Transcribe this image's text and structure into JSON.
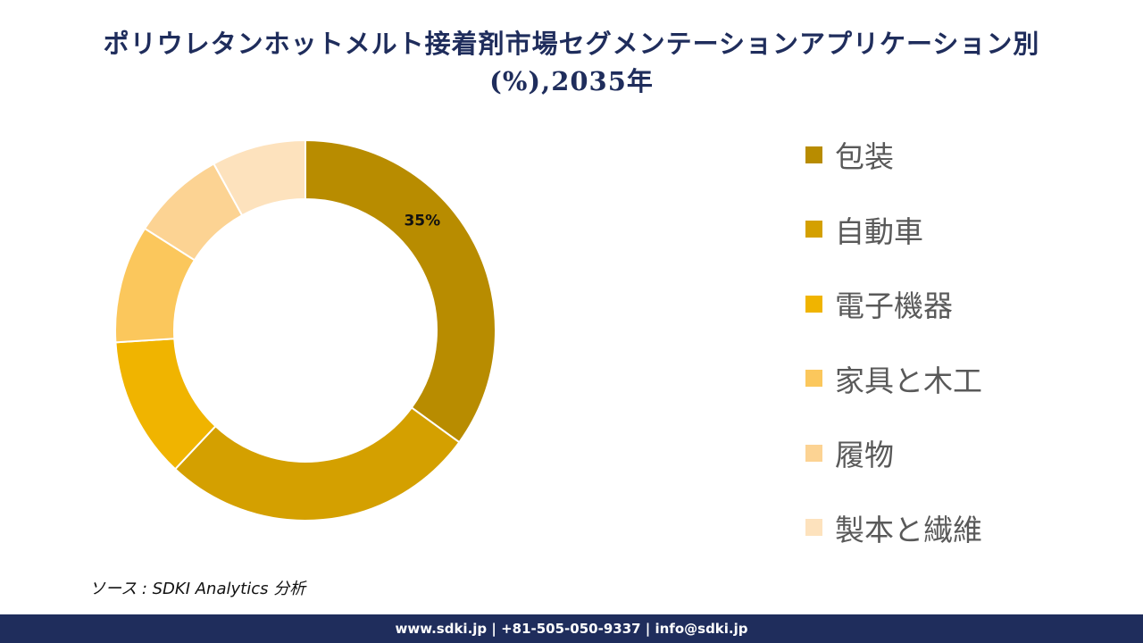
{
  "title": "ポリウレタンホットメルト接着剤市場セグメンテーションアプリケーション別(%),2035年",
  "source": "ソース : SDKI Analytics 分析",
  "footer": "www.sdki.jp | +81-505-050-9337 | info@sdki.jp",
  "colors": {
    "title": "#1f2d5c",
    "footer_bg": "#1f2d5c"
  },
  "chart_data": {
    "type": "pie",
    "style": "donut",
    "legend_position": "right",
    "categories": [
      "包装",
      "自動車",
      "電子機器",
      "家具と木工",
      "履物",
      "製本と繊維"
    ],
    "values": [
      35,
      27,
      12,
      10,
      8,
      8
    ],
    "colors": [
      "#b88c00",
      "#d4a000",
      "#f0b400",
      "#fbc75c",
      "#fcd393",
      "#fde2bd"
    ],
    "data_labels": [
      "35%",
      "",
      "",
      "",
      "",
      ""
    ]
  }
}
